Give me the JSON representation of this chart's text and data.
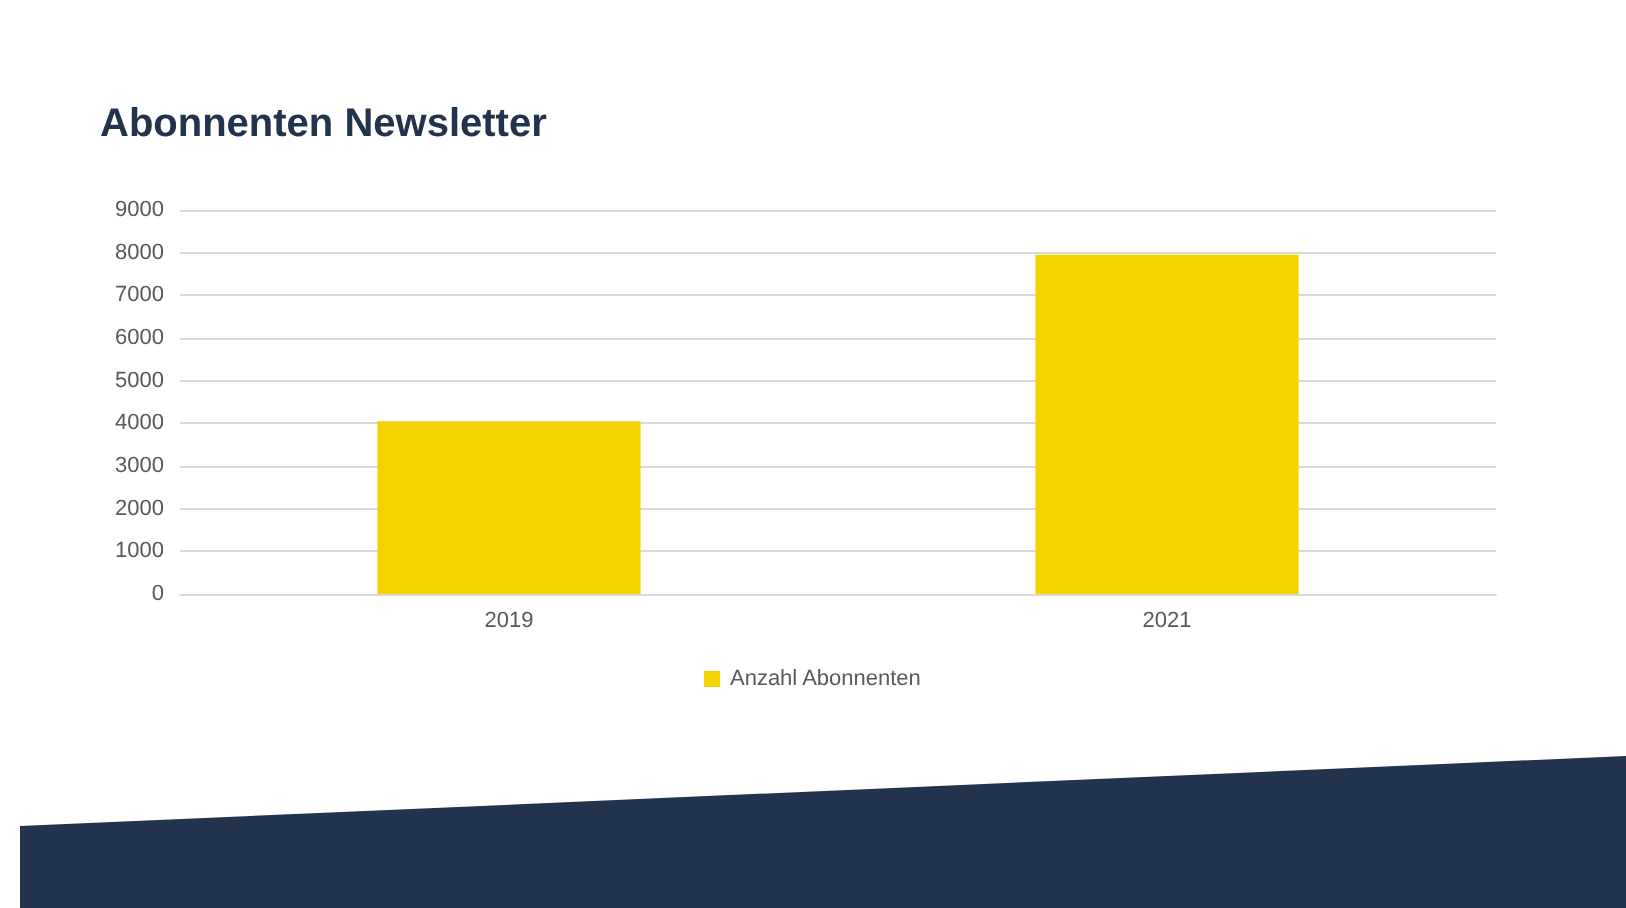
{
  "chart_data": {
    "type": "bar",
    "title": "Abonnenten Newsletter",
    "categories": [
      "2019",
      "2021"
    ],
    "series": [
      {
        "name": "Anzahl Abonnenten",
        "color": "#f5d300",
        "values": [
          4050,
          7950
        ]
      }
    ],
    "ylim": [
      0,
      9000
    ],
    "yticks": [
      0,
      1000,
      2000,
      3000,
      4000,
      5000,
      6000,
      7000,
      8000,
      9000
    ],
    "grid": "y",
    "legend": "bottom"
  }
}
